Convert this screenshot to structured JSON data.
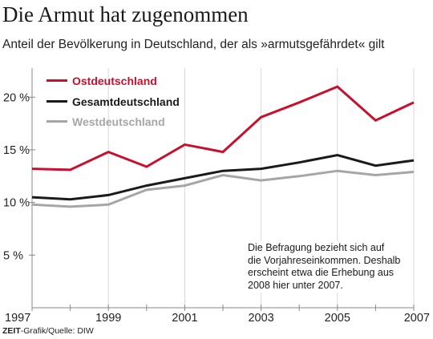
{
  "title": "Die Armut hat zugenommen",
  "subtitle": "Anteil der Bevölkerung in Deutschland, der als »armutsgefährdet« gilt",
  "annotation": [
    "Die Befragung bezieht sich auf",
    "die Vorjahreseinkommen. Deshalb",
    "erscheint etwa die Erhebung aus",
    "2008 hier unter 2007."
  ],
  "source": {
    "brand": "ZEIT",
    "text": "-Grafik/Quelle: DIW"
  },
  "colors": {
    "ost": "#c8102e",
    "gesamt": "#1a1a1a",
    "west": "#a6a6a6",
    "grid": "#d9d9d9",
    "axis": "#888888"
  },
  "chart_data": {
    "type": "line",
    "x": [
      1997,
      1998,
      1999,
      2000,
      2001,
      2002,
      2003,
      2004,
      2005,
      2006,
      2007
    ],
    "xticks": [
      1997,
      1999,
      2001,
      2003,
      2005,
      2007
    ],
    "xtick_labels": [
      "1997",
      "1999",
      "2001",
      "2003",
      "2005",
      "2007"
    ],
    "xlim": [
      1997,
      2007
    ],
    "ylim": [
      0,
      22
    ],
    "yticks": [
      5,
      10,
      15,
      20
    ],
    "ytick_labels": [
      "5 %",
      "10 %",
      "15 %",
      "20 %"
    ],
    "grid": "vertical at odd years",
    "legend_position": "top-left",
    "series": [
      {
        "name": "Ostdeutschland",
        "color": "#c8102e",
        "values": [
          13.2,
          13.1,
          14.8,
          13.4,
          15.5,
          14.8,
          18.1,
          19.5,
          21.0,
          17.8,
          19.5
        ]
      },
      {
        "name": "Gesamtdeutschland",
        "color": "#1a1a1a",
        "values": [
          10.5,
          10.3,
          10.7,
          11.6,
          12.3,
          13.0,
          13.2,
          13.8,
          14.5,
          13.5,
          14.0
        ]
      },
      {
        "name": "Westdeutschland",
        "color": "#a6a6a6",
        "values": [
          9.8,
          9.6,
          9.8,
          11.2,
          11.6,
          12.6,
          12.1,
          12.5,
          13.0,
          12.6,
          12.9
        ]
      }
    ]
  }
}
